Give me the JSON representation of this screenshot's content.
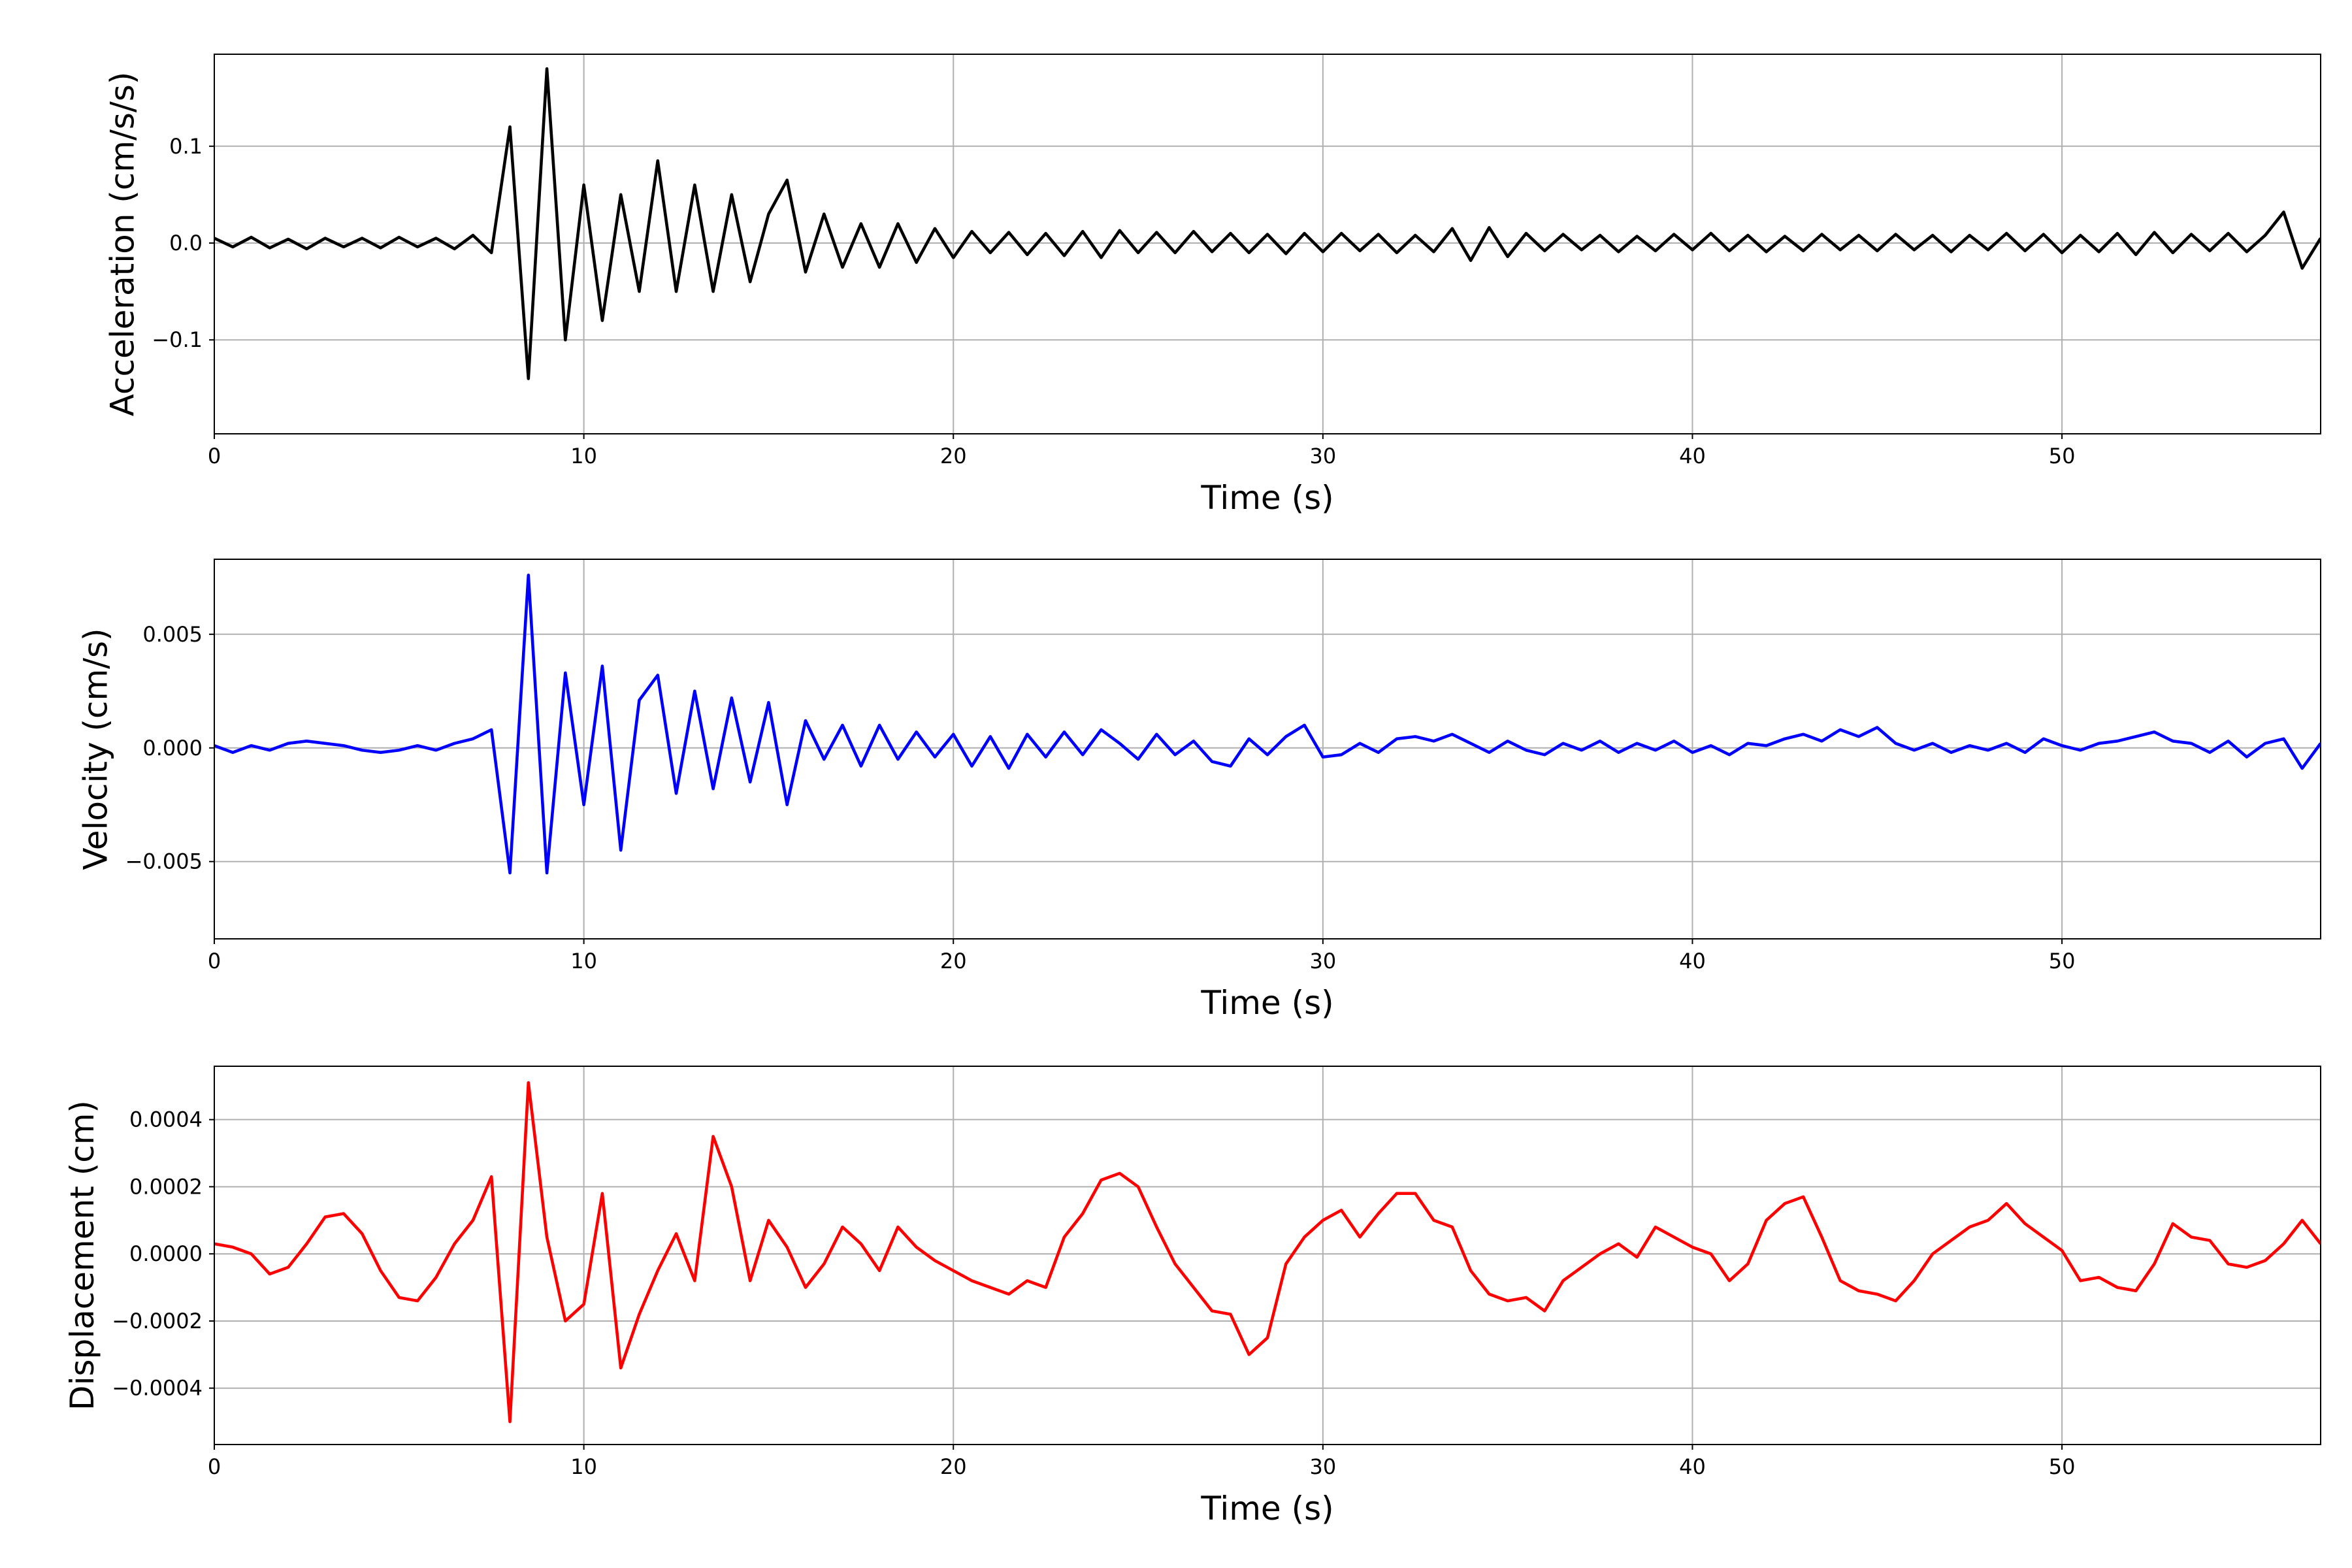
{
  "chart_data": [
    {
      "type": "line",
      "xlabel": "Time (s)",
      "ylabel": "Acceleration (cm/s/s)",
      "color": "#000000",
      "grid": true,
      "xlim": [
        0,
        57
      ],
      "xticks": [
        0,
        10,
        20,
        30,
        40,
        50
      ],
      "ylim": [
        -0.197,
        0.195
      ],
      "yticks": [
        {
          "value": -0.1,
          "label": "−0.1"
        },
        {
          "value": 0,
          "label": "0.0"
        },
        0.1
      ],
      "x": [
        0,
        0.5,
        1,
        1.5,
        2,
        2.5,
        3,
        3.5,
        4,
        4.5,
        5,
        5.5,
        6,
        6.5,
        7,
        7.5,
        8,
        8.5,
        9,
        9.5,
        10,
        10.5,
        11,
        11.5,
        12,
        12.5,
        13,
        13.5,
        14,
        14.5,
        15,
        15.5,
        16,
        16.5,
        17,
        17.5,
        18,
        18.5,
        19,
        19.5,
        20,
        20.5,
        21,
        21.5,
        22,
        22.5,
        23,
        23.5,
        24,
        24.5,
        25,
        25.5,
        26,
        26.5,
        27,
        27.5,
        28,
        28.5,
        29,
        29.5,
        30,
        30.5,
        31,
        31.5,
        32,
        32.5,
        33,
        33.5,
        34,
        34.5,
        35,
        35.5,
        36,
        36.5,
        37,
        37.5,
        38,
        38.5,
        39,
        39.5,
        40,
        40.5,
        41,
        41.5,
        42,
        42.5,
        43,
        43.5,
        44,
        44.5,
        45,
        45.5,
        46,
        46.5,
        47,
        47.5,
        48,
        48.5,
        49,
        49.5,
        50,
        50.5,
        51,
        51.5,
        52,
        52.5,
        53,
        53.5,
        54,
        54.5,
        55,
        55.5,
        56,
        56.5,
        57
      ],
      "values": [
        0.005,
        -0.004,
        0.006,
        -0.005,
        0.004,
        -0.006,
        0.005,
        -0.004,
        0.005,
        -0.005,
        0.006,
        -0.004,
        0.005,
        -0.006,
        0.008,
        -0.01,
        0.12,
        -0.14,
        0.18,
        -0.1,
        0.06,
        -0.08,
        0.05,
        -0.05,
        0.085,
        -0.05,
        0.06,
        -0.05,
        0.05,
        -0.04,
        0.03,
        0.065,
        -0.03,
        0.03,
        -0.025,
        0.02,
        -0.025,
        0.02,
        -0.02,
        0.015,
        -0.015,
        0.012,
        -0.01,
        0.011,
        -0.012,
        0.01,
        -0.013,
        0.012,
        -0.015,
        0.013,
        -0.01,
        0.011,
        -0.01,
        0.012,
        -0.009,
        0.01,
        -0.01,
        0.009,
        -0.011,
        0.01,
        -0.009,
        0.01,
        -0.008,
        0.009,
        -0.01,
        0.008,
        -0.009,
        0.015,
        -0.018,
        0.016,
        -0.014,
        0.01,
        -0.008,
        0.009,
        -0.007,
        0.008,
        -0.009,
        0.007,
        -0.008,
        0.009,
        -0.007,
        0.01,
        -0.008,
        0.008,
        -0.009,
        0.007,
        -0.008,
        0.009,
        -0.007,
        0.008,
        -0.008,
        0.009,
        -0.007,
        0.008,
        -0.009,
        0.008,
        -0.007,
        0.01,
        -0.008,
        0.009,
        -0.01,
        0.008,
        -0.009,
        0.01,
        -0.012,
        0.011,
        -0.01,
        0.009,
        -0.008,
        0.01,
        -0.009,
        0.008,
        0.032,
        -0.026,
        0.005
      ]
    },
    {
      "type": "line",
      "xlabel": "Time (s)",
      "ylabel": "Velocity (cm/s)",
      "color": "#0000ff",
      "grid": true,
      "xlim": [
        0,
        57
      ],
      "xticks": [
        0,
        10,
        20,
        30,
        40,
        50
      ],
      "ylim": [
        -0.0084,
        0.0083
      ],
      "yticks": [
        {
          "value": -0.005,
          "label": "−0.005"
        },
        {
          "value": 0,
          "label": "0.000"
        },
        0.005
      ],
      "x": [
        0,
        0.5,
        1,
        1.5,
        2,
        2.5,
        3,
        3.5,
        4,
        4.5,
        5,
        5.5,
        6,
        6.5,
        7,
        7.5,
        8,
        8.5,
        9,
        9.5,
        10,
        10.5,
        11,
        11.5,
        12,
        12.5,
        13,
        13.5,
        14,
        14.5,
        15,
        15.5,
        16,
        16.5,
        17,
        17.5,
        18,
        18.5,
        19,
        19.5,
        20,
        20.5,
        21,
        21.5,
        22,
        22.5,
        23,
        23.5,
        24,
        24.5,
        25,
        25.5,
        26,
        26.5,
        27,
        27.5,
        28,
        28.5,
        29,
        29.5,
        30,
        30.5,
        31,
        31.5,
        32,
        32.5,
        33,
        33.5,
        34,
        34.5,
        35,
        35.5,
        36,
        36.5,
        37,
        37.5,
        38,
        38.5,
        39,
        39.5,
        40,
        40.5,
        41,
        41.5,
        42,
        42.5,
        43,
        43.5,
        44,
        44.5,
        45,
        45.5,
        46,
        46.5,
        47,
        47.5,
        48,
        48.5,
        49,
        49.5,
        50,
        50.5,
        51,
        51.5,
        52,
        52.5,
        53,
        53.5,
        54,
        54.5,
        55,
        55.5,
        56,
        56.5,
        57
      ],
      "values": [
        0.0001,
        -0.0002,
        0.0001,
        -0.0001,
        0.0002,
        0.0003,
        0.0002,
        0.0001,
        -0.0001,
        -0.0002,
        -0.0001,
        0.0001,
        -0.0001,
        0.0002,
        0.0004,
        0.0008,
        -0.0055,
        0.0076,
        -0.0055,
        0.0033,
        -0.0025,
        0.0036,
        -0.0045,
        0.0021,
        0.0032,
        -0.002,
        0.0025,
        -0.0018,
        0.0022,
        -0.0015,
        0.002,
        -0.0025,
        0.0012,
        -0.0005,
        0.001,
        -0.0008,
        0.001,
        -0.0005,
        0.0007,
        -0.0004,
        0.0006,
        -0.0008,
        0.0005,
        -0.0009,
        0.0006,
        -0.0004,
        0.0007,
        -0.0003,
        0.0008,
        0.0002,
        -0.0005,
        0.0006,
        -0.0003,
        0.0003,
        -0.0006,
        -0.0008,
        0.0004,
        -0.0003,
        0.0005,
        0.001,
        -0.0004,
        -0.0003,
        0.0002,
        -0.0002,
        0.0004,
        0.0005,
        0.0003,
        0.0006,
        0.0002,
        -0.0002,
        0.0003,
        -0.0001,
        -0.0003,
        0.0002,
        -0.0001,
        0.0003,
        -0.0002,
        0.0002,
        -0.0001,
        0.0003,
        -0.0002,
        0.0001,
        -0.0003,
        0.0002,
        0.0001,
        0.0004,
        0.0006,
        0.0003,
        0.0008,
        0.0005,
        0.0009,
        0.0002,
        -0.0001,
        0.0002,
        -0.0002,
        0.0001,
        -0.0001,
        0.0002,
        -0.0002,
        0.0004,
        0.0001,
        -0.0001,
        0.0002,
        0.0003,
        0.0005,
        0.0007,
        0.0003,
        0.0002,
        -0.0002,
        0.0003,
        -0.0004,
        0.0002,
        0.0004,
        -0.0009,
        0.0002
      ]
    },
    {
      "type": "line",
      "xlabel": "Time (s)",
      "ylabel": "Displacement (cm)",
      "color": "#ff0000",
      "grid": true,
      "xlim": [
        0,
        57
      ],
      "xticks": [
        0,
        10,
        20,
        30,
        40,
        50
      ],
      "ylim": [
        -0.000568,
        0.000559
      ],
      "yticks": [
        {
          "value": -0.0004,
          "label": "−0.0004"
        },
        {
          "value": -0.0002,
          "label": "−0.0002"
        },
        {
          "value": 0,
          "label": "0.0000"
        },
        0.0002,
        0.0004
      ],
      "x": [
        0,
        0.5,
        1,
        1.5,
        2,
        2.5,
        3,
        3.5,
        4,
        4.5,
        5,
        5.5,
        6,
        6.5,
        7,
        7.5,
        8,
        8.5,
        9,
        9.5,
        10,
        10.5,
        11,
        11.5,
        12,
        12.5,
        13,
        13.5,
        14,
        14.5,
        15,
        15.5,
        16,
        16.5,
        17,
        17.5,
        18,
        18.5,
        19,
        19.5,
        20,
        20.5,
        21,
        21.5,
        22,
        22.5,
        23,
        23.5,
        24,
        24.5,
        25,
        25.5,
        26,
        26.5,
        27,
        27.5,
        28,
        28.5,
        29,
        29.5,
        30,
        30.5,
        31,
        31.5,
        32,
        32.5,
        33,
        33.5,
        34,
        34.5,
        35,
        35.5,
        36,
        36.5,
        37,
        37.5,
        38,
        38.5,
        39,
        39.5,
        40,
        40.5,
        41,
        41.5,
        42,
        42.5,
        43,
        43.5,
        44,
        44.5,
        45,
        45.5,
        46,
        46.5,
        47,
        47.5,
        48,
        48.5,
        49,
        49.5,
        50,
        50.5,
        51,
        51.5,
        52,
        52.5,
        53,
        53.5,
        54,
        54.5,
        55,
        55.5,
        56,
        56.5,
        57
      ],
      "values": [
        3e-05,
        2e-05,
        0.0,
        -6e-05,
        -4e-05,
        3e-05,
        0.00011,
        0.00012,
        6e-05,
        -5e-05,
        -0.00013,
        -0.00014,
        -7e-05,
        3e-05,
        0.0001,
        0.00023,
        -0.0005,
        0.00051,
        5e-05,
        -0.0002,
        -0.00015,
        0.00018,
        -0.00034,
        -0.00018,
        -5e-05,
        6e-05,
        -8e-05,
        0.00035,
        0.0002,
        -8e-05,
        0.0001,
        2e-05,
        -0.0001,
        -3e-05,
        8e-05,
        3e-05,
        -5e-05,
        8e-05,
        2e-05,
        -2e-05,
        -5e-05,
        -8e-05,
        -0.0001,
        -0.00012,
        -8e-05,
        -0.0001,
        5e-05,
        0.00012,
        0.00022,
        0.00024,
        0.0002,
        8e-05,
        -3e-05,
        -0.0001,
        -0.00017,
        -0.00018,
        -0.0003,
        -0.00025,
        -3e-05,
        5e-05,
        0.0001,
        0.00013,
        5e-05,
        0.00012,
        0.00018,
        0.00018,
        0.0001,
        8e-05,
        -5e-05,
        -0.00012,
        -0.00014,
        -0.00013,
        -0.00017,
        -8e-05,
        -4e-05,
        0.0,
        3e-05,
        -1e-05,
        8e-05,
        5e-05,
        2e-05,
        0.0,
        -8e-05,
        -3e-05,
        0.0001,
        0.00015,
        0.00017,
        5e-05,
        -8e-05,
        -0.00011,
        -0.00012,
        -0.00014,
        -8e-05,
        0.0,
        4e-05,
        8e-05,
        0.0001,
        0.00015,
        9e-05,
        5e-05,
        1e-05,
        -8e-05,
        -7e-05,
        -0.0001,
        -0.00011,
        -3e-05,
        9e-05,
        5e-05,
        4e-05,
        -3e-05,
        -4e-05,
        -2e-05,
        3e-05,
        0.0001,
        3e-05
      ]
    }
  ]
}
